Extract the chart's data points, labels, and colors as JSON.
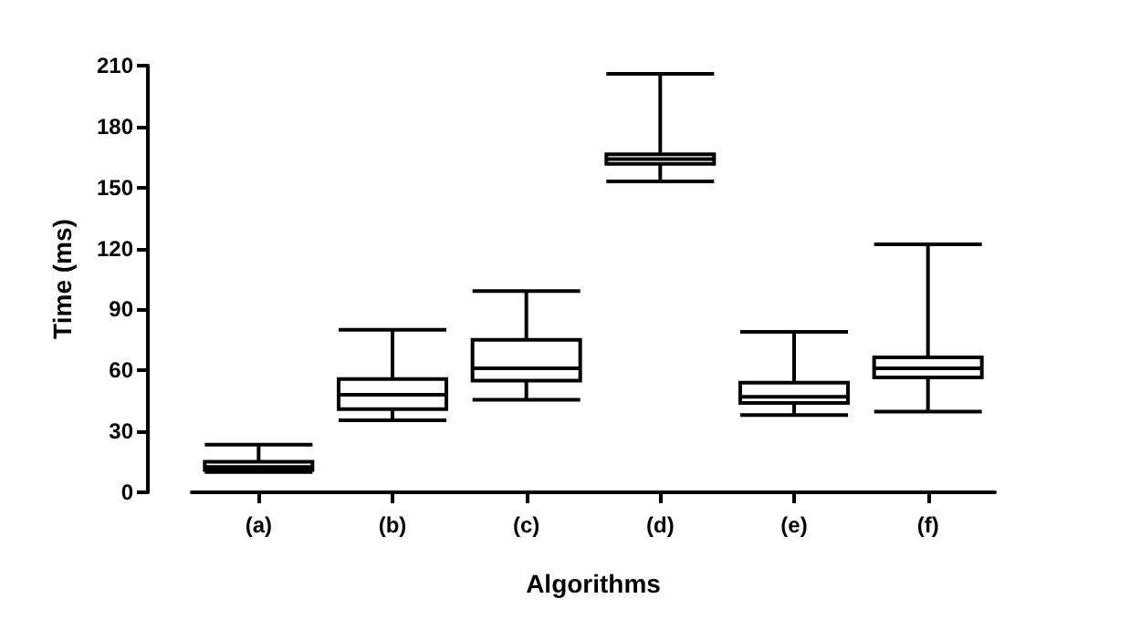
{
  "chart_data": {
    "type": "box",
    "xlabel": "Algorithms",
    "ylabel": "Time (ms)",
    "categories": [
      "(a)",
      "(b)",
      "(c)",
      "(d)",
      "(e)",
      "(f)"
    ],
    "boxes": [
      {
        "low": 10,
        "q1": 11,
        "median": 12.5,
        "q3": 15,
        "high": 23.5
      },
      {
        "low": 35.5,
        "q1": 41,
        "median": 48,
        "q3": 55.7,
        "high": 80
      },
      {
        "low": 45.6,
        "q1": 55,
        "median": 61,
        "q3": 75,
        "high": 99
      },
      {
        "low": 153,
        "q1": 161.6,
        "median": 164,
        "q3": 166.4,
        "high": 206
      },
      {
        "low": 38,
        "q1": 44,
        "median": 47,
        "q3": 54,
        "high": 79
      },
      {
        "low": 39.7,
        "q1": 56.5,
        "median": 61,
        "q3": 66.4,
        "high": 122
      }
    ],
    "color": "#000000",
    "ylim": [
      0,
      210
    ],
    "yticks": [
      0,
      30,
      60,
      90,
      120,
      150,
      180,
      210
    ],
    "grid": false
  }
}
